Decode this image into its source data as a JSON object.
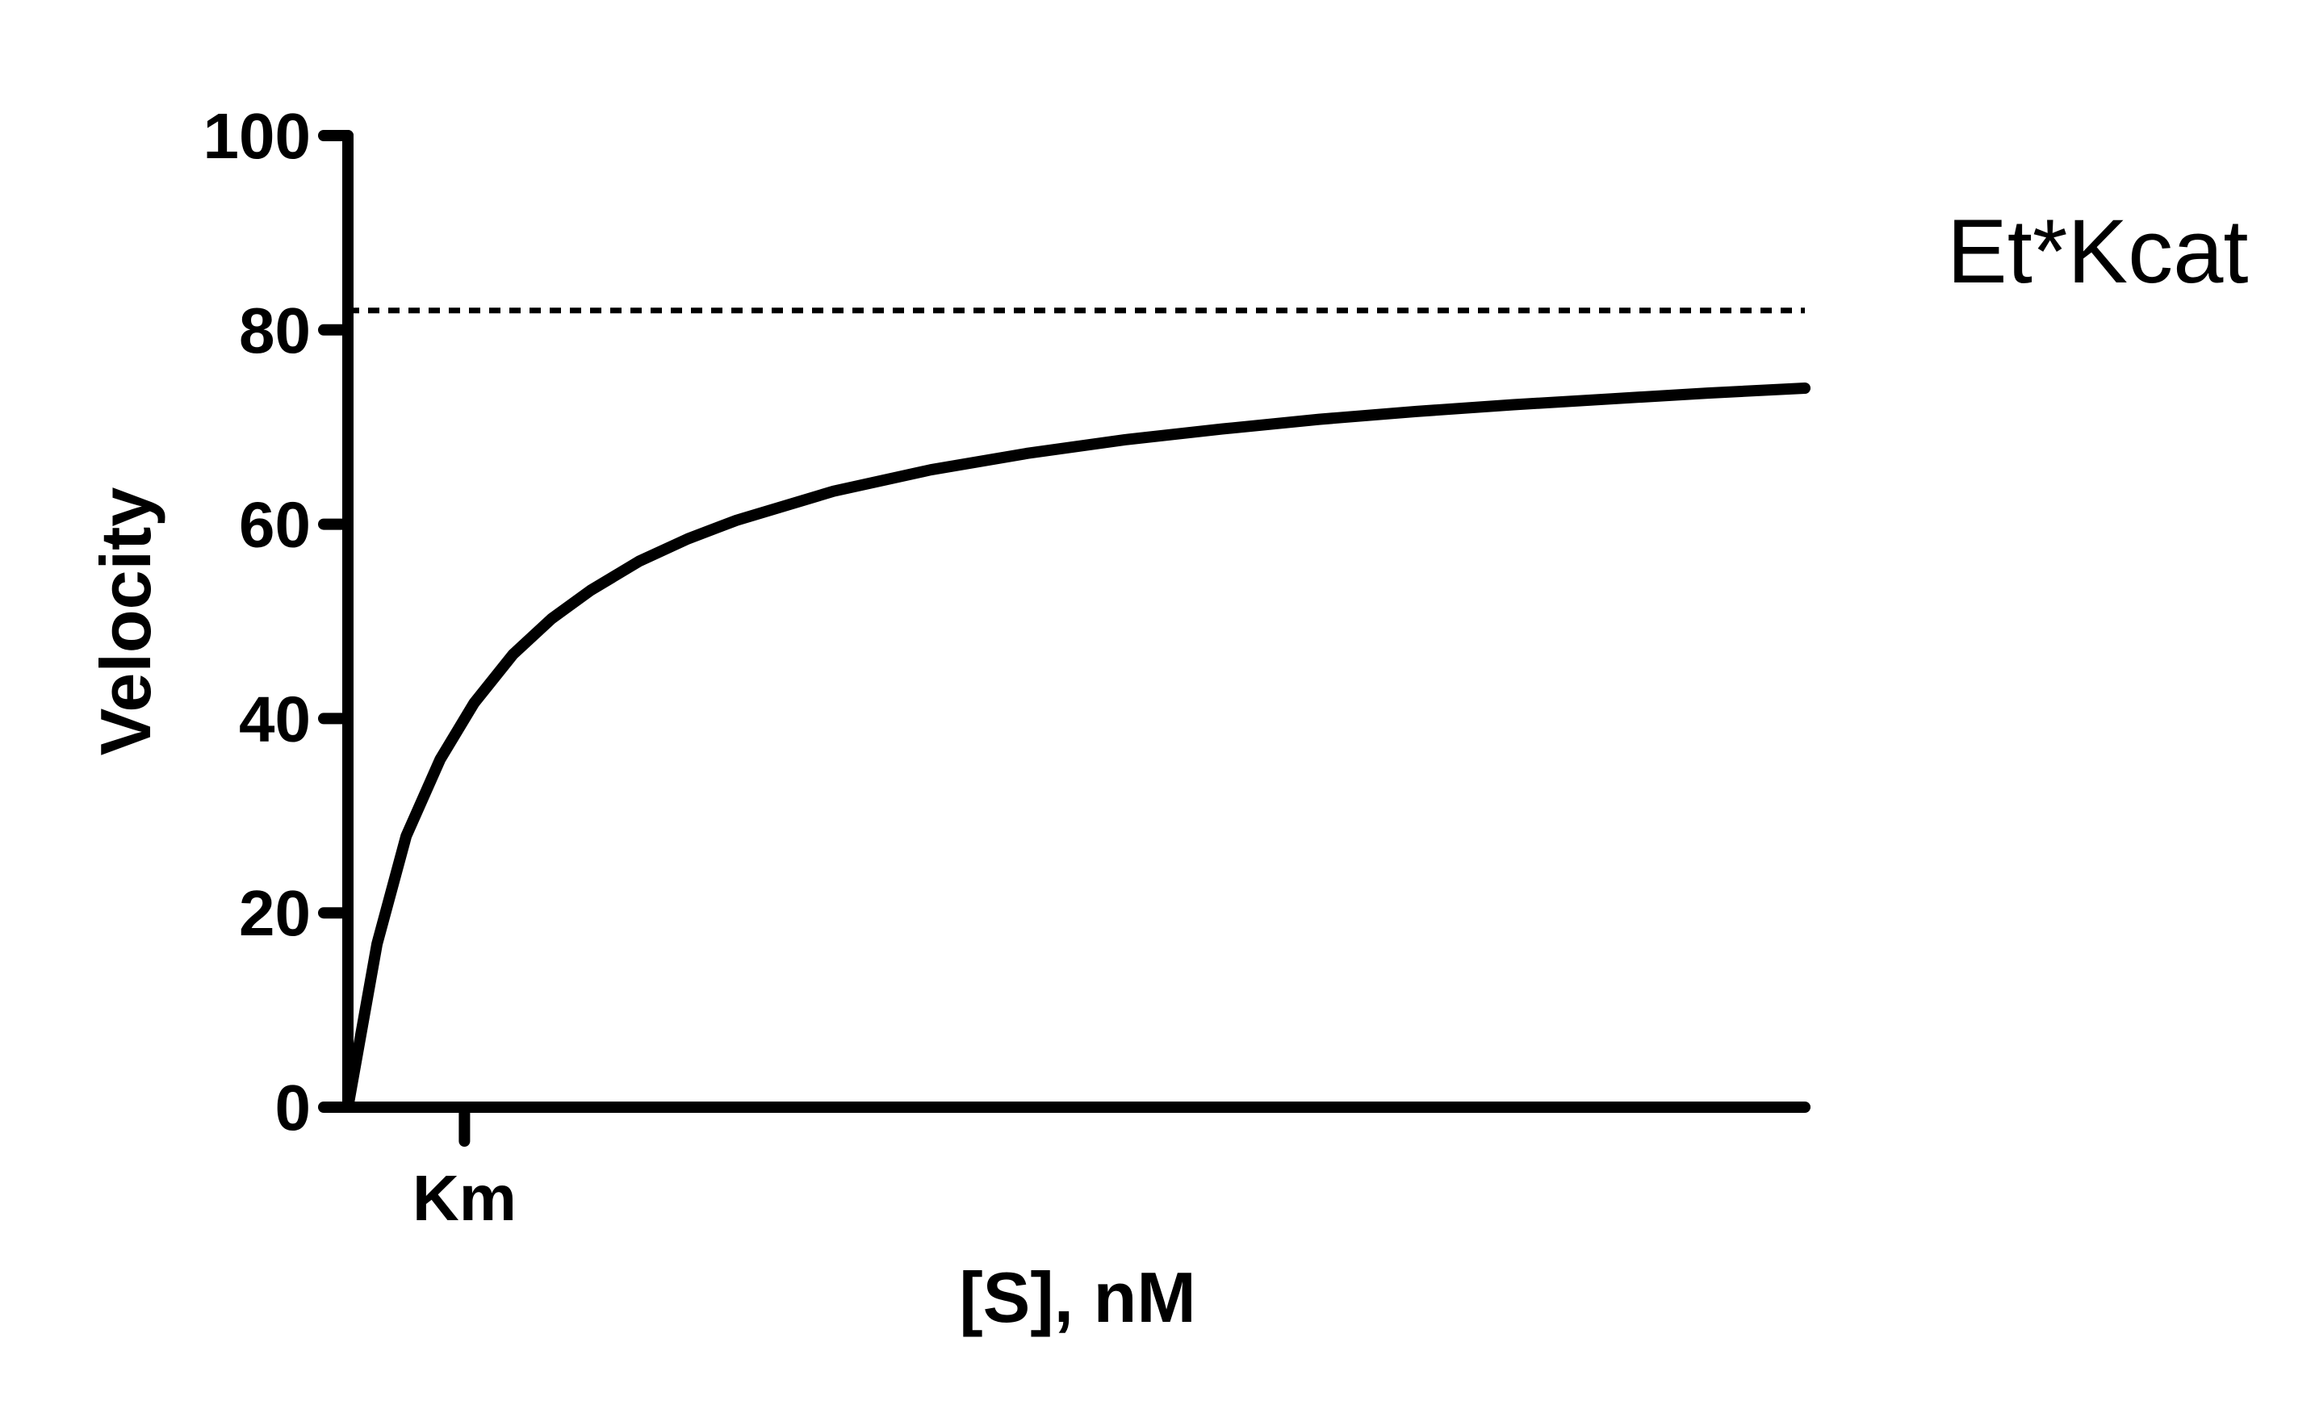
{
  "chart_data": {
    "type": "line",
    "title": "",
    "xlabel": "[S], nM",
    "ylabel": "Velocity",
    "ylim": [
      0,
      100
    ],
    "yticks": [
      0,
      20,
      40,
      60,
      80,
      100
    ],
    "xlim": [
      0,
      15
    ],
    "xticks": [
      {
        "value": 1.2,
        "label": "Km"
      }
    ],
    "grid": false,
    "legend": "none",
    "series": [
      {
        "style": "solid",
        "color": "#000000",
        "points": [
          [
            0,
            0
          ],
          [
            0.3,
            16.8
          ],
          [
            0.6,
            27.9
          ],
          [
            0.95,
            35.8
          ],
          [
            1.3,
            41.6
          ],
          [
            1.7,
            46.6
          ],
          [
            2.1,
            50.3
          ],
          [
            2.5,
            53.2
          ],
          [
            3,
            56.2
          ],
          [
            3.5,
            58.5
          ],
          [
            4,
            60.4
          ],
          [
            5,
            63.4
          ],
          [
            6,
            65.6
          ],
          [
            7,
            67.3
          ],
          [
            8,
            68.7
          ],
          [
            9,
            69.8
          ],
          [
            10,
            70.8
          ],
          [
            11,
            71.6
          ],
          [
            12,
            72.3
          ],
          [
            13,
            72.9
          ],
          [
            14,
            73.5
          ],
          [
            15,
            74.0
          ]
        ]
      },
      {
        "style": "dashed",
        "color": "#000000",
        "points": [
          [
            0,
            82
          ],
          [
            15,
            82
          ]
        ]
      }
    ],
    "annotations": [
      {
        "text": "Et*Kcat",
        "target": "dashed asymptote",
        "placement": "right"
      }
    ]
  }
}
